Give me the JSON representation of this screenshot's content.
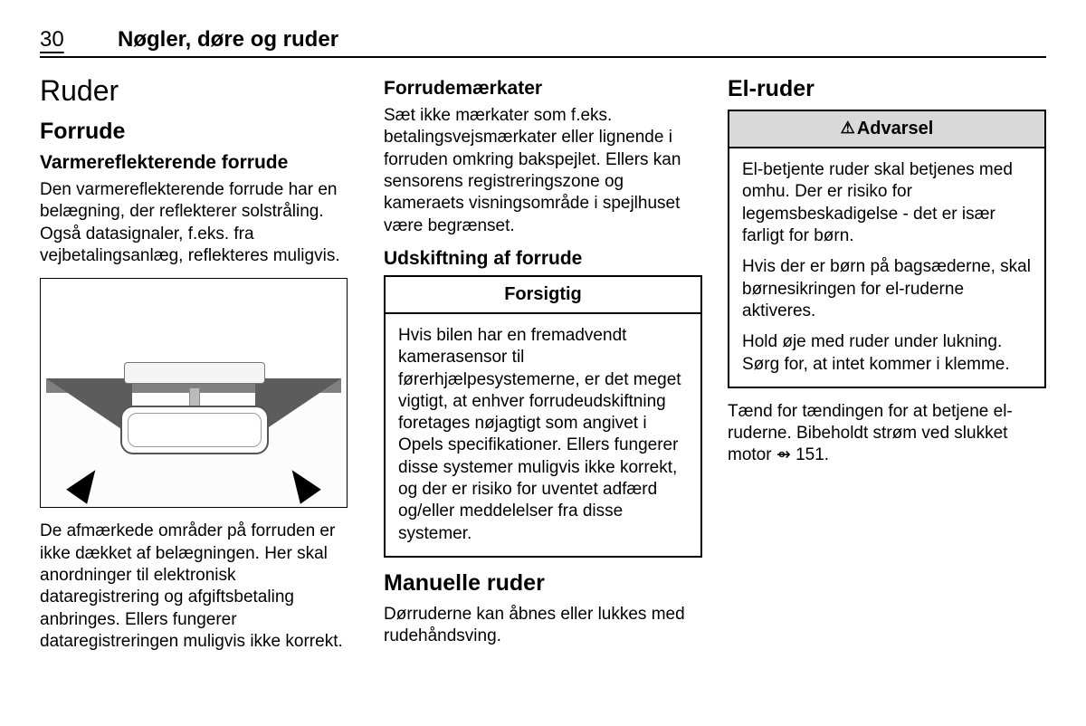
{
  "header": {
    "page_number": "30",
    "title": "Nøgler, døre og ruder"
  },
  "col1": {
    "h1": "Ruder",
    "h2": "Forrude",
    "h3": "Varmereflekterende forrude",
    "p1": "Den varmereflekterende forrude har en belægning, der reflekterer solstråling. Også datasignaler, f.eks. fra vejbetalingsanlæg, reflekteres muligvis.",
    "p2": "De afmærkede områder på forruden er ikke dækket af belægningen. Her skal anordninger til elektronisk dataregistrering og afgiftsbetaling anbringes. Ellers fungerer dataregistreringen muligvis ikke korrekt."
  },
  "col2": {
    "h3a": "Forrudemærkater",
    "p1": "Sæt ikke mærkater som f.eks. betalingsvejsmærkater eller lignende i forruden omkring bakspejlet. Ellers kan sensorens registreringszone og kameraets visningsområde i spejlhuset være begrænset.",
    "h3b": "Udskiftning af forrude",
    "caution_title": "Forsigtig",
    "caution_body": "Hvis bilen har en fremadvendt kamerasensor til førerhjælpesystemerne, er det meget vigtigt, at enhver forrudeudskiftning foretages nøjagtigt som angivet i Opels specifikationer. Ellers fungerer disse systemer muligvis ikke korrekt, og der er risiko for uventet adfærd og/eller meddelelser fra disse systemer.",
    "h2": "Manuelle ruder",
    "p2": "Dørruderne kan åbnes eller lukkes med rudehåndsving."
  },
  "col3": {
    "h2": "El-ruder",
    "warning_title": "Advarsel",
    "warning_p1": "El-betjente ruder skal betjenes med omhu. Der er risiko for legemsbeskadigelse - det er især farligt for børn.",
    "warning_p2": "Hvis der er børn på bagsæderne, skal børnesikringen for el-ruderne aktiveres.",
    "warning_p3": "Hold øje med ruder under lukning. Sørg for, at intet kommer i klemme.",
    "p_after": "Tænd for tændingen for at betjene el-ruderne. Bibeholdt strøm ved slukket motor ",
    "ref": "151."
  }
}
